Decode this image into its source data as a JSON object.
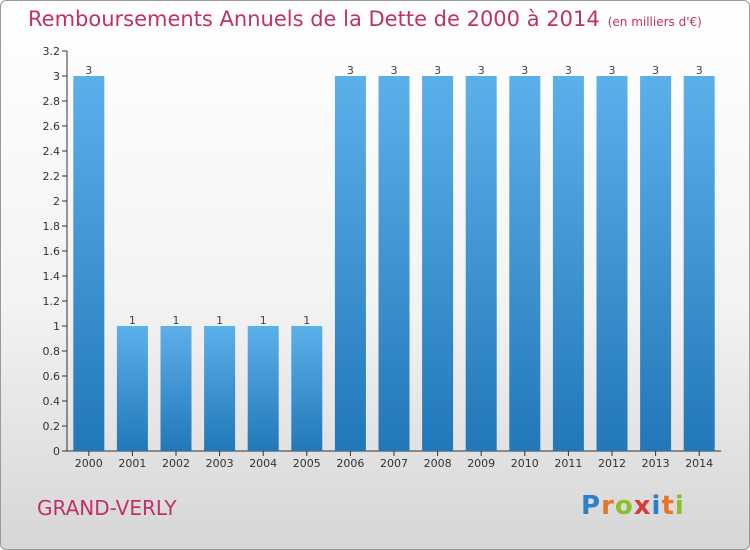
{
  "header": {
    "title": "Remboursements Annuels de la Dette de 2000 à 2014",
    "unit": "(en milliers d'€)"
  },
  "footer": {
    "commune": "GRAND-VERLY",
    "brand": "Proxiti",
    "brand_colors": [
      "#2e7ec9",
      "#e8742a",
      "#8bbf2e",
      "#d93b3b",
      "#2e7ec9",
      "#e8742a",
      "#8bbf2e"
    ]
  },
  "colors": {
    "accent": "#c0306a",
    "bar_light": "#5cb0ea",
    "bar_dark": "#2277b8",
    "axis": "#333333"
  },
  "chart_data": {
    "type": "bar",
    "categories": [
      "2000",
      "2001",
      "2002",
      "2003",
      "2004",
      "2005",
      "2006",
      "2007",
      "2008",
      "2009",
      "2010",
      "2011",
      "2012",
      "2013",
      "2014"
    ],
    "values": [
      3,
      1,
      1,
      1,
      1,
      1,
      3,
      3,
      3,
      3,
      3,
      3,
      3,
      3,
      3
    ],
    "data_labels": [
      "3",
      "1",
      "1",
      "1",
      "1",
      "1",
      "3",
      "3",
      "3",
      "3",
      "3",
      "3",
      "3",
      "3",
      "3"
    ],
    "y_ticks": [
      {
        "value": 0,
        "label": "0"
      },
      {
        "value": 0.2,
        "label": "0.2"
      },
      {
        "value": 0.4,
        "label": "0.4"
      },
      {
        "value": 0.6,
        "label": "0.6"
      },
      {
        "value": 0.8,
        "label": "0.8"
      },
      {
        "value": 1,
        "label": "1"
      },
      {
        "value": 1.2,
        "label": "1.2"
      },
      {
        "value": 1.4,
        "label": "1.4"
      },
      {
        "value": 1.6,
        "label": "1.6"
      },
      {
        "value": 1.8,
        "label": "1.8"
      },
      {
        "value": 2,
        "label": "2"
      },
      {
        "value": 2.2,
        "label": "2.2"
      },
      {
        "value": 2.4,
        "label": "2.4"
      },
      {
        "value": 2.6,
        "label": "2.6"
      },
      {
        "value": 2.8,
        "label": "2.8"
      },
      {
        "value": 3,
        "label": "3"
      },
      {
        "value": 3.2,
        "label": "3.2"
      }
    ],
    "ylim": [
      0,
      3.2
    ],
    "grid": false,
    "legend": "none"
  }
}
